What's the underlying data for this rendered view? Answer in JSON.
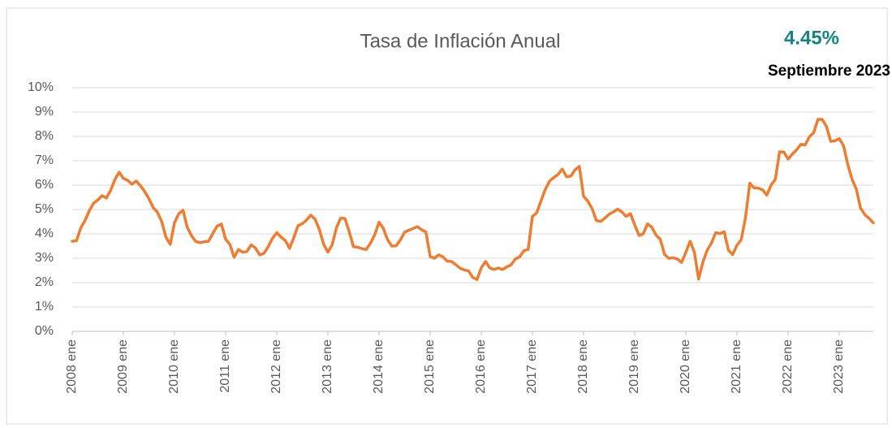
{
  "chart_data": {
    "type": "line",
    "title": "Tasa de Inflación Anual",
    "annotations": [
      "4.45%",
      "Septiembre 2023"
    ],
    "color": "#ED7D31",
    "grid": true,
    "ylim": [
      0,
      10
    ],
    "yticks": [
      {
        "value": 0,
        "label": "0%"
      },
      {
        "value": 1,
        "label": "1%"
      },
      {
        "value": 2,
        "label": "2%"
      },
      {
        "value": 3,
        "label": "3%"
      },
      {
        "value": 4,
        "label": "4%"
      },
      {
        "value": 5,
        "label": "5%"
      },
      {
        "value": 6,
        "label": "6%"
      },
      {
        "value": 7,
        "label": "7%"
      },
      {
        "value": 8,
        "label": "8%"
      },
      {
        "value": 9,
        "label": "9%"
      },
      {
        "value": 10,
        "label": "10%"
      }
    ],
    "categories": [
      "2008 ene",
      null,
      null,
      null,
      null,
      null,
      null,
      null,
      null,
      null,
      null,
      null,
      "2009 ene",
      null,
      null,
      null,
      null,
      null,
      null,
      null,
      null,
      null,
      null,
      null,
      "2010 ene",
      null,
      null,
      null,
      null,
      null,
      null,
      null,
      null,
      null,
      null,
      null,
      "2011 ene",
      null,
      null,
      null,
      null,
      null,
      null,
      null,
      null,
      null,
      null,
      null,
      "2012 ene",
      null,
      null,
      null,
      null,
      null,
      null,
      null,
      null,
      null,
      null,
      null,
      "2013 ene",
      null,
      null,
      null,
      null,
      null,
      null,
      null,
      null,
      null,
      null,
      null,
      "2014 ene",
      null,
      null,
      null,
      null,
      null,
      null,
      null,
      null,
      null,
      null,
      null,
      "2015 ene",
      null,
      null,
      null,
      null,
      null,
      null,
      null,
      null,
      null,
      null,
      null,
      "2016 ene",
      null,
      null,
      null,
      null,
      null,
      null,
      null,
      null,
      null,
      null,
      null,
      "2017 ene",
      null,
      null,
      null,
      null,
      null,
      null,
      null,
      null,
      null,
      null,
      null,
      "2018 ene",
      null,
      null,
      null,
      null,
      null,
      null,
      null,
      null,
      null,
      null,
      null,
      "2019 ene",
      null,
      null,
      null,
      null,
      null,
      null,
      null,
      null,
      null,
      null,
      null,
      "2020 ene",
      null,
      null,
      null,
      null,
      null,
      null,
      null,
      null,
      null,
      null,
      null,
      "2021 ene",
      null,
      null,
      null,
      null,
      null,
      null,
      null,
      null,
      null,
      null,
      null,
      "2022 ene",
      null,
      null,
      null,
      null,
      null,
      null,
      null,
      null,
      null,
      null,
      null,
      "2023 ene",
      null,
      null,
      null,
      null,
      null,
      null,
      null,
      null
    ],
    "values": [
      3.7,
      3.72,
      4.25,
      4.55,
      4.95,
      5.26,
      5.39,
      5.57,
      5.47,
      5.78,
      6.23,
      6.53,
      6.28,
      6.2,
      6.04,
      6.17,
      5.98,
      5.74,
      5.44,
      5.08,
      4.89,
      4.5,
      3.86,
      3.57,
      4.46,
      4.83,
      4.97,
      4.27,
      3.92,
      3.69,
      3.64,
      3.68,
      3.7,
      4.02,
      4.32,
      4.4,
      3.78,
      3.57,
      3.04,
      3.36,
      3.25,
      3.28,
      3.55,
      3.42,
      3.14,
      3.2,
      3.48,
      3.82,
      4.05,
      3.87,
      3.73,
      3.41,
      3.85,
      4.34,
      4.42,
      4.57,
      4.77,
      4.6,
      4.18,
      3.57,
      3.25,
      3.55,
      4.25,
      4.65,
      4.63,
      4.09,
      3.47,
      3.46,
      3.39,
      3.36,
      3.62,
      3.97,
      4.48,
      4.23,
      3.76,
      3.5,
      3.51,
      3.75,
      4.07,
      4.15,
      4.22,
      4.3,
      4.17,
      4.08,
      3.07,
      3.0,
      3.14,
      3.06,
      2.88,
      2.87,
      2.74,
      2.59,
      2.52,
      2.48,
      2.21,
      2.13,
      2.61,
      2.87,
      2.6,
      2.54,
      2.6,
      2.54,
      2.65,
      2.73,
      2.97,
      3.06,
      3.31,
      3.36,
      4.72,
      4.86,
      5.35,
      5.82,
      6.16,
      6.31,
      6.44,
      6.66,
      6.35,
      6.37,
      6.63,
      6.77,
      5.55,
      5.34,
      5.04,
      4.55,
      4.51,
      4.65,
      4.81,
      4.9,
      5.02,
      4.9,
      4.72,
      4.83,
      4.37,
      3.94,
      4.0,
      4.41,
      4.28,
      3.95,
      3.78,
      3.16,
      3.0,
      3.02,
      2.97,
      2.83,
      3.24,
      3.7,
      3.25,
      2.15,
      2.84,
      3.33,
      3.62,
      4.05,
      4.01,
      4.09,
      3.33,
      3.15,
      3.54,
      3.76,
      4.67,
      6.08,
      5.89,
      5.88,
      5.81,
      5.59,
      6.0,
      6.24,
      7.37,
      7.36,
      7.07,
      7.28,
      7.45,
      7.68,
      7.65,
      7.99,
      8.15,
      8.7,
      8.7,
      8.41,
      7.8,
      7.82,
      7.91,
      7.62,
      6.85,
      6.25,
      5.84,
      5.06,
      4.79,
      4.64,
      4.45
    ]
  }
}
